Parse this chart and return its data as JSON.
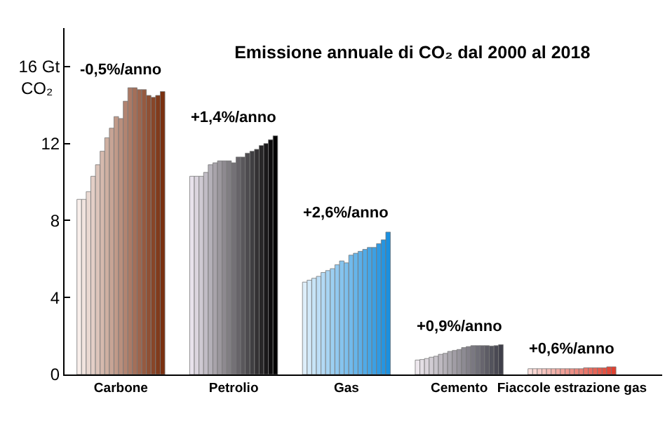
{
  "chart_data": {
    "type": "bar",
    "title": "Emissione annuale di CO₂ dal 2000 al 2018",
    "ylabel": "CO₂",
    "categories": [
      "Carbone",
      "Petrolio",
      "Gas",
      "Cemento",
      "Fiaccole estrazione gas"
    ],
    "ylim": [
      0,
      18
    ],
    "yticks": [
      0,
      4,
      8,
      12,
      {
        "value": 16,
        "label": "16 Gt"
      }
    ],
    "series": [
      {
        "values": [
          9.1,
          10.3,
          4.8,
          0.75,
          0.3
        ],
        "colors": [
          "#f8eeea",
          "#e8e2ec",
          "#ddeefa",
          "#eee8ee",
          "#fbe0dc"
        ]
      },
      {
        "values": [
          9.1,
          10.3,
          4.9,
          0.78,
          0.3
        ],
        "colors": [
          "#f1e3de",
          "#dbd5df",
          "#d2e9f9",
          "#e4dfe5",
          "#fad7d2"
        ]
      },
      {
        "values": [
          9.5,
          10.3,
          5.0,
          0.83,
          0.3
        ],
        "colors": [
          "#ead9d2",
          "#cec9d2",
          "#c7e4f7",
          "#dbd5dc",
          "#f8cec9"
        ]
      },
      {
        "values": [
          10.3,
          10.5,
          5.1,
          0.9,
          0.3
        ],
        "colors": [
          "#e3cec6",
          "#c1bcc5",
          "#bddef6",
          "#d1ccd3",
          "#f7c5bf"
        ]
      },
      {
        "values": [
          10.9,
          10.9,
          5.3,
          0.95,
          0.3
        ],
        "colors": [
          "#dcc4ba",
          "#b4b0b8",
          "#b2d9f4",
          "#c7c3ca",
          "#f5bcb6"
        ]
      },
      {
        "values": [
          11.6,
          11.0,
          5.4,
          1.05,
          0.3
        ],
        "colors": [
          "#d5b9ad",
          "#a8a3aa",
          "#a7d4f3",
          "#beb9c0",
          "#f4b4ac"
        ]
      },
      {
        "values": [
          12.3,
          11.1,
          5.5,
          1.1,
          0.3
        ],
        "colors": [
          "#ceafa1",
          "#9b979d",
          "#9ccff1",
          "#b4b0b7",
          "#f2aba3"
        ]
      },
      {
        "values": [
          12.8,
          11.1,
          5.7,
          1.2,
          0.3
        ],
        "colors": [
          "#c7a495",
          "#8e8a90",
          "#91c9f0",
          "#aaa7ae",
          "#f1a299"
        ]
      },
      {
        "values": [
          13.4,
          11.1,
          5.9,
          1.25,
          0.3
        ],
        "colors": [
          "#c09a89",
          "#817e83",
          "#86c4ee",
          "#a19da5",
          "#ef9990"
        ]
      },
      {
        "values": [
          13.3,
          11.0,
          5.8,
          1.3,
          0.3
        ],
        "colors": [
          "#b98f7d",
          "#747176",
          "#7cbfed",
          "#97949c",
          "#ee9086"
        ]
      },
      {
        "values": [
          14.2,
          11.3,
          6.2,
          1.4,
          0.3
        ],
        "colors": [
          "#b28471",
          "#676469",
          "#71baec",
          "#8d8b93",
          "#ec877c"
        ]
      },
      {
        "values": [
          14.9,
          11.3,
          6.3,
          1.45,
          0.3
        ],
        "colors": [
          "#ab7a65",
          "#5a585c",
          "#66b5ea",
          "#84818a",
          "#eb7e73"
        ]
      },
      {
        "values": [
          14.9,
          11.5,
          6.4,
          1.5,
          0.35
        ],
        "colors": [
          "#a46f59",
          "#4d4b4f",
          "#5bafe9",
          "#7a7881",
          "#e97569"
        ]
      },
      {
        "values": [
          14.8,
          11.6,
          6.5,
          1.5,
          0.35
        ],
        "colors": [
          "#9d654d",
          "#403f42",
          "#50aae7",
          "#706f78",
          "#e86c60"
        ]
      },
      {
        "values": [
          14.8,
          11.7,
          6.6,
          1.5,
          0.35
        ],
        "colors": [
          "#965a40",
          "#343234",
          "#45a5e6",
          "#67656e",
          "#e66456"
        ]
      },
      {
        "values": [
          14.5,
          11.9,
          6.6,
          1.5,
          0.35
        ],
        "colors": [
          "#8f5034",
          "#272627",
          "#3ba0e4",
          "#5d5c65",
          "#e55b4c"
        ]
      },
      {
        "values": [
          14.4,
          12.0,
          6.8,
          1.48,
          0.35
        ],
        "colors": [
          "#884528",
          "#1a191a",
          "#309ae3",
          "#53535c",
          "#e35243"
        ]
      },
      {
        "values": [
          14.5,
          12.2,
          7.0,
          1.5,
          0.4
        ],
        "colors": [
          "#813b1c",
          "#0d0c0d",
          "#2595e1",
          "#4a4953",
          "#e24939"
        ]
      },
      {
        "values": [
          14.7,
          12.4,
          7.4,
          1.55,
          0.4
        ],
        "colors": [
          "#7a3010",
          "#000000",
          "#1a90e0",
          "#40404a",
          "#e04030"
        ]
      }
    ],
    "annotations": [
      "-0,5%/anno",
      "+1,4%/anno",
      "+2,6%/anno",
      "+0,9%/anno",
      "+0,6%/anno"
    ]
  }
}
